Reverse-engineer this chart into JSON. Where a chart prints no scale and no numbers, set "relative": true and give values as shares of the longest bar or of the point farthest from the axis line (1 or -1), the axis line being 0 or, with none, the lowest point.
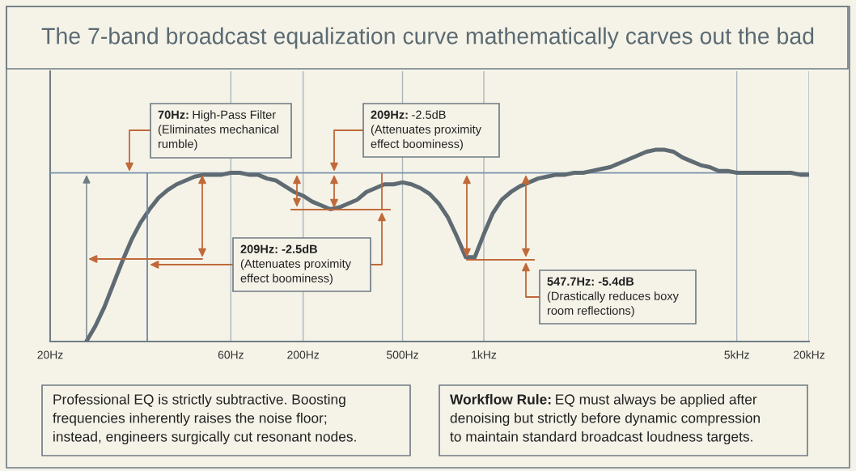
{
  "chart_data": {
    "type": "line",
    "title": "The 7-band broadcast equalization curve mathematically carves out the bad",
    "categories": [
      "20Hz",
      null,
      null,
      null,
      null,
      null,
      null,
      null,
      null,
      null,
      null,
      null,
      null,
      null,
      null,
      null,
      null,
      null,
      null,
      null,
      "60Hz",
      null,
      null,
      null,
      null,
      null,
      null,
      null,
      "200Hz",
      null,
      null,
      null,
      null,
      null,
      null,
      null,
      null,
      null,
      null,
      "500Hz",
      null,
      null,
      null,
      null,
      null,
      null,
      null,
      null,
      "1kHz",
      null,
      null,
      null,
      null,
      null,
      null,
      null,
      null,
      null,
      null,
      null,
      null,
      null,
      null,
      null,
      null,
      null,
      null,
      null,
      null,
      null,
      null,
      null,
      null,
      null,
      null,
      null,
      "5kHz",
      null,
      null,
      null,
      null,
      null,
      null,
      null,
      "20kHz"
    ],
    "values": [
      null,
      null,
      null,
      null,
      0,
      0.08,
      0.18,
      0.3,
      0.42,
      0.53,
      0.62,
      0.69,
      0.75,
      0.79,
      0.82,
      0.84,
      0.86,
      0.87,
      0.87,
      0.87,
      0.88,
      0.88,
      0.87,
      0.87,
      0.85,
      0.84,
      0.81,
      0.78,
      0.76,
      0.73,
      0.71,
      0.69,
      0.7,
      0.72,
      0.74,
      0.78,
      0.8,
      0.82,
      0.82,
      0.83,
      0.82,
      0.8,
      0.77,
      0.72,
      0.65,
      0.55,
      0.44,
      0.44,
      0.56,
      0.67,
      0.74,
      0.78,
      0.81,
      0.83,
      0.85,
      0.86,
      0.87,
      0.87,
      0.88,
      0.88,
      0.89,
      0.9,
      0.91,
      0.93,
      0.95,
      0.97,
      0.99,
      1,
      1,
      0.99,
      0.96,
      0.94,
      0.92,
      0.91,
      0.89,
      0.89,
      0.88,
      0.88,
      0.88,
      0.88,
      0.88,
      0.88,
      0.88,
      0.87,
      0.87
    ],
    "color": "#5f6b73",
    "relative": true,
    "grid": "x",
    "ref_lines": [
      {
        "axis": "y",
        "value": 0.88,
        "color": "#7b93ad"
      }
    ],
    "annotations": [
      "70Hz: High-Pass Filter\n(Eliminates mechanical\nrumble)",
      "209Hz: -2.5dB\n(Attenuates proximity\neffect boominess)",
      "209Hz: -2.5dB\n(Attenuates proximity\neffect boominess)",
      "547.7Hz: -5.4dB\n(Drastically reduces boxy\nroom reflections)",
      "Professional EQ is strictly subtractive. Boosting\nfrequencies inherently raises the noise floor;\ninstead, engineers surgically cut resonant nodes.",
      "Workflow Rule: EQ must always be applied after\ndenoising but strictly before dynamic compression\nto maintain standard broadcast loudness targets."
    ]
  }
}
